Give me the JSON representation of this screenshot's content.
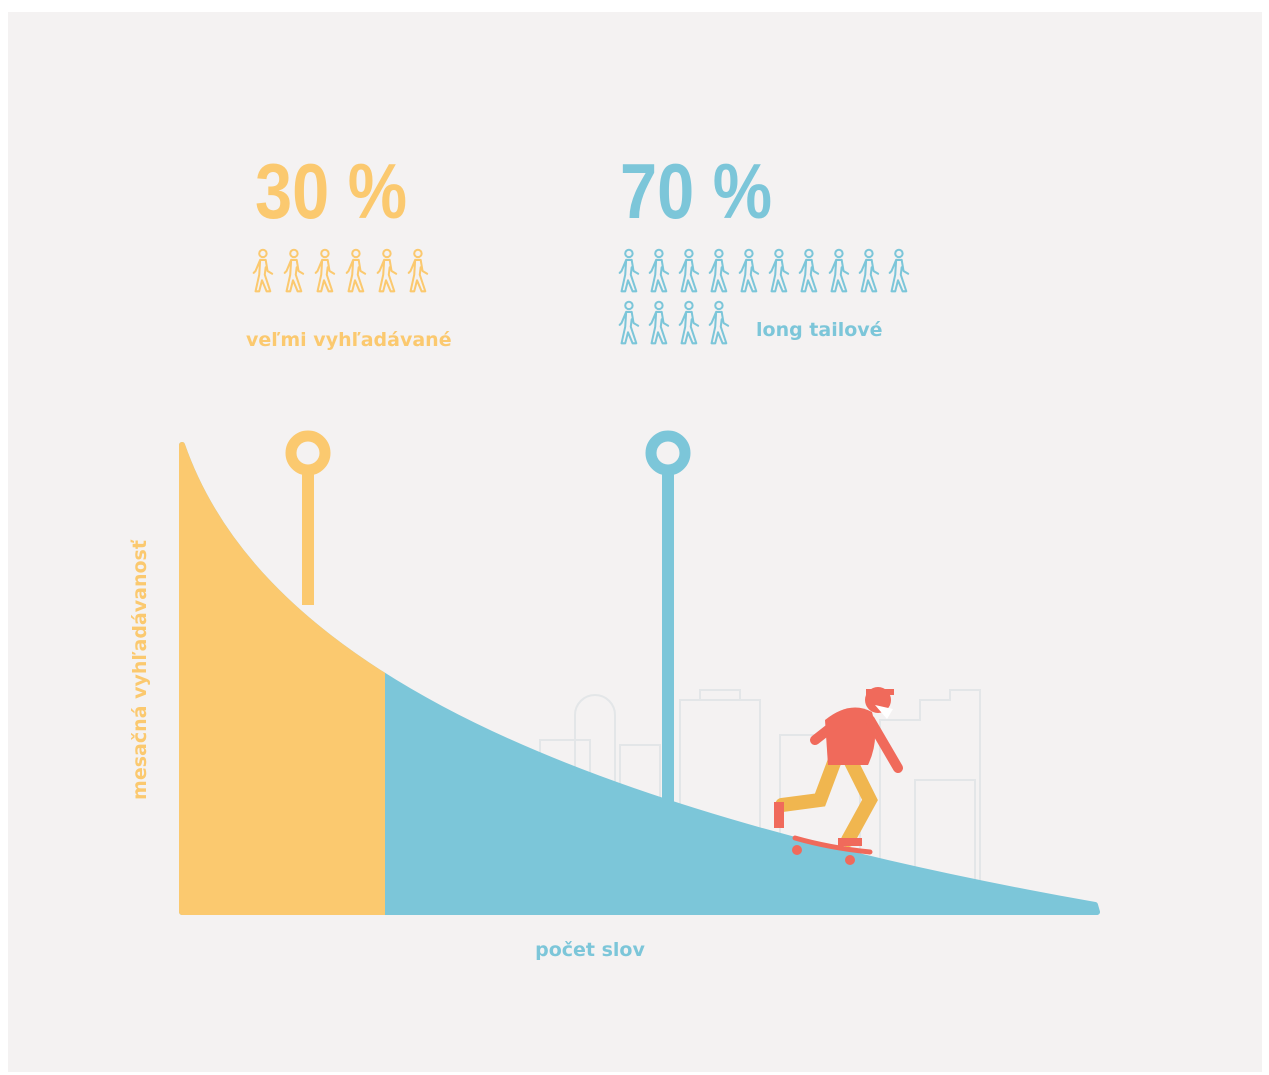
{
  "groups": [
    {
      "percent": "30 %",
      "label": "veľmi vyhľadávané"
    },
    {
      "percent": "70 %",
      "label": "long tailové"
    }
  ],
  "axes": {
    "y_label": "mesačná vyhľadávanosť",
    "x_label": "počet slov"
  }
}
